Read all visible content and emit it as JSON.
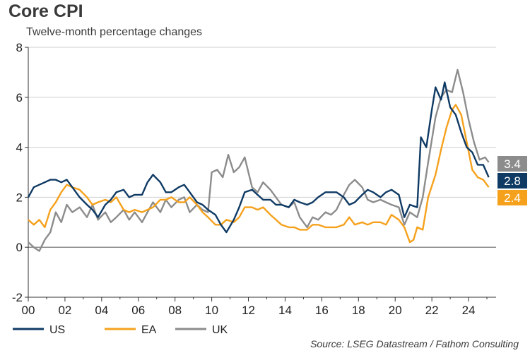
{
  "chart_data": {
    "type": "line",
    "title": "Core CPI",
    "subtitle": "Twelve-month percentage changes",
    "source": "Source: LSEG Datastream / Fathom Consulting",
    "xlim": [
      2000,
      2025.5
    ],
    "ylim": [
      -2,
      8
    ],
    "y_ticks": [
      -2,
      0,
      2,
      4,
      6,
      8
    ],
    "x_ticks": [
      {
        "value": 2000,
        "label": "00"
      },
      {
        "value": 2002,
        "label": "02"
      },
      {
        "value": 2004,
        "label": "04"
      },
      {
        "value": 2006,
        "label": "06"
      },
      {
        "value": 2008,
        "label": "08"
      },
      {
        "value": 2010,
        "label": "10"
      },
      {
        "value": 2012,
        "label": "12"
      },
      {
        "value": 2014,
        "label": "14"
      },
      {
        "value": 2016,
        "label": "16"
      },
      {
        "value": 2018,
        "label": "18"
      },
      {
        "value": 2020,
        "label": "20"
      },
      {
        "value": 2022,
        "label": "22"
      },
      {
        "value": 2024,
        "label": "24"
      }
    ],
    "series": [
      {
        "name": "UK",
        "color": "#8c8c8c",
        "latest": "3.4",
        "points": [
          [
            2000,
            0.2
          ],
          [
            2000.3,
            0.0
          ],
          [
            2000.6,
            -0.15
          ],
          [
            2000.9,
            0.3
          ],
          [
            2001.2,
            0.6
          ],
          [
            2001.5,
            1.4
          ],
          [
            2001.8,
            1.0
          ],
          [
            2002.1,
            1.7
          ],
          [
            2002.4,
            1.4
          ],
          [
            2002.8,
            1.6
          ],
          [
            2003.2,
            1.2
          ],
          [
            2003.5,
            1.7
          ],
          [
            2003.8,
            1.1
          ],
          [
            2004.2,
            1.4
          ],
          [
            2004.5,
            1.0
          ],
          [
            2004.8,
            1.2
          ],
          [
            2005.2,
            1.5
          ],
          [
            2005.5,
            1.1
          ],
          [
            2005.8,
            1.4
          ],
          [
            2006.2,
            1.0
          ],
          [
            2006.5,
            1.4
          ],
          [
            2006.8,
            1.8
          ],
          [
            2007.2,
            1.4
          ],
          [
            2007.5,
            1.9
          ],
          [
            2007.8,
            1.6
          ],
          [
            2008.2,
            1.9
          ],
          [
            2008.5,
            2.0
          ],
          [
            2008.8,
            1.4
          ],
          [
            2009.2,
            1.7
          ],
          [
            2009.5,
            1.5
          ],
          [
            2009.8,
            1.4
          ],
          [
            2010.0,
            3.0
          ],
          [
            2010.3,
            3.1
          ],
          [
            2010.6,
            2.8
          ],
          [
            2010.9,
            3.7
          ],
          [
            2011.2,
            3.0
          ],
          [
            2011.5,
            3.2
          ],
          [
            2011.8,
            3.6
          ],
          [
            2012.2,
            2.4
          ],
          [
            2012.5,
            2.2
          ],
          [
            2012.8,
            2.6
          ],
          [
            2013.2,
            2.3
          ],
          [
            2013.5,
            2.0
          ],
          [
            2013.8,
            1.7
          ],
          [
            2014.2,
            1.6
          ],
          [
            2014.5,
            1.8
          ],
          [
            2014.8,
            1.2
          ],
          [
            2015.2,
            0.8
          ],
          [
            2015.5,
            1.2
          ],
          [
            2015.8,
            1.1
          ],
          [
            2016.2,
            1.4
          ],
          [
            2016.5,
            1.3
          ],
          [
            2016.8,
            1.5
          ],
          [
            2017.2,
            2.1
          ],
          [
            2017.5,
            2.5
          ],
          [
            2017.8,
            2.7
          ],
          [
            2018.2,
            2.4
          ],
          [
            2018.5,
            1.9
          ],
          [
            2018.8,
            1.8
          ],
          [
            2019.2,
            1.9
          ],
          [
            2019.5,
            1.8
          ],
          [
            2019.8,
            1.7
          ],
          [
            2020.2,
            1.6
          ],
          [
            2020.5,
            0.9
          ],
          [
            2020.8,
            1.4
          ],
          [
            2021.2,
            1.2
          ],
          [
            2021.5,
            2.0
          ],
          [
            2021.8,
            3.4
          ],
          [
            2022.2,
            5.2
          ],
          [
            2022.5,
            6.0
          ],
          [
            2022.8,
            6.3
          ],
          [
            2023.1,
            6.2
          ],
          [
            2023.4,
            7.1
          ],
          [
            2023.7,
            6.2
          ],
          [
            2024.0,
            5.1
          ],
          [
            2024.3,
            4.2
          ],
          [
            2024.6,
            3.5
          ],
          [
            2024.9,
            3.6
          ],
          [
            2025.1,
            3.4
          ]
        ]
      },
      {
        "name": "EA",
        "color": "#f5a11c",
        "latest": "2.4",
        "points": [
          [
            2000,
            1.1
          ],
          [
            2000.3,
            0.9
          ],
          [
            2000.6,
            1.1
          ],
          [
            2000.9,
            0.8
          ],
          [
            2001.2,
            1.5
          ],
          [
            2001.5,
            1.8
          ],
          [
            2001.8,
            2.2
          ],
          [
            2002.1,
            2.5
          ],
          [
            2002.4,
            2.4
          ],
          [
            2002.8,
            2.3
          ],
          [
            2003.2,
            2.0
          ],
          [
            2003.5,
            1.7
          ],
          [
            2003.8,
            1.8
          ],
          [
            2004.2,
            1.9
          ],
          [
            2004.5,
            1.8
          ],
          [
            2004.8,
            2.0
          ],
          [
            2005.2,
            1.5
          ],
          [
            2005.5,
            1.4
          ],
          [
            2005.8,
            1.5
          ],
          [
            2006.2,
            1.4
          ],
          [
            2006.5,
            1.5
          ],
          [
            2006.8,
            1.6
          ],
          [
            2007.2,
            1.9
          ],
          [
            2007.5,
            1.9
          ],
          [
            2007.8,
            2.0
          ],
          [
            2008.2,
            1.8
          ],
          [
            2008.5,
            1.8
          ],
          [
            2008.8,
            2.0
          ],
          [
            2009.2,
            1.7
          ],
          [
            2009.5,
            1.4
          ],
          [
            2009.8,
            1.2
          ],
          [
            2010.2,
            0.9
          ],
          [
            2010.5,
            0.9
          ],
          [
            2010.8,
            1.1
          ],
          [
            2011.2,
            1.0
          ],
          [
            2011.5,
            1.2
          ],
          [
            2011.8,
            1.6
          ],
          [
            2012.2,
            1.6
          ],
          [
            2012.5,
            1.5
          ],
          [
            2012.8,
            1.6
          ],
          [
            2013.2,
            1.3
          ],
          [
            2013.5,
            1.1
          ],
          [
            2013.8,
            0.9
          ],
          [
            2014.2,
            0.8
          ],
          [
            2014.5,
            0.8
          ],
          [
            2014.8,
            0.7
          ],
          [
            2015.2,
            0.7
          ],
          [
            2015.5,
            0.9
          ],
          [
            2015.8,
            0.9
          ],
          [
            2016.2,
            0.8
          ],
          [
            2016.5,
            0.8
          ],
          [
            2016.8,
            0.8
          ],
          [
            2017.2,
            0.9
          ],
          [
            2017.5,
            1.2
          ],
          [
            2017.8,
            0.9
          ],
          [
            2018.2,
            1.0
          ],
          [
            2018.5,
            0.9
          ],
          [
            2018.8,
            1.0
          ],
          [
            2019.2,
            1.0
          ],
          [
            2019.5,
            0.9
          ],
          [
            2019.8,
            1.3
          ],
          [
            2020.2,
            1.1
          ],
          [
            2020.5,
            0.8
          ],
          [
            2020.8,
            0.2
          ],
          [
            2021.0,
            0.3
          ],
          [
            2021.2,
            0.8
          ],
          [
            2021.5,
            0.7
          ],
          [
            2021.8,
            2.0
          ],
          [
            2022.2,
            2.9
          ],
          [
            2022.5,
            3.9
          ],
          [
            2022.8,
            4.8
          ],
          [
            2023.1,
            5.5
          ],
          [
            2023.3,
            5.7
          ],
          [
            2023.6,
            5.3
          ],
          [
            2023.9,
            4.2
          ],
          [
            2024.2,
            3.1
          ],
          [
            2024.5,
            2.8
          ],
          [
            2024.8,
            2.7
          ],
          [
            2025.1,
            2.4
          ]
        ]
      },
      {
        "name": "US",
        "color": "#0f3a64",
        "latest": "2.8",
        "points": [
          [
            2000,
            2.0
          ],
          [
            2000.3,
            2.4
          ],
          [
            2000.6,
            2.5
          ],
          [
            2000.9,
            2.6
          ],
          [
            2001.2,
            2.7
          ],
          [
            2001.5,
            2.7
          ],
          [
            2001.8,
            2.6
          ],
          [
            2002.1,
            2.7
          ],
          [
            2002.4,
            2.4
          ],
          [
            2002.8,
            2.0
          ],
          [
            2003.2,
            1.7
          ],
          [
            2003.5,
            1.5
          ],
          [
            2003.8,
            1.2
          ],
          [
            2004.2,
            1.7
          ],
          [
            2004.5,
            1.9
          ],
          [
            2004.8,
            2.2
          ],
          [
            2005.2,
            2.3
          ],
          [
            2005.5,
            2.0
          ],
          [
            2005.8,
            2.1
          ],
          [
            2006.2,
            2.1
          ],
          [
            2006.5,
            2.6
          ],
          [
            2006.8,
            2.9
          ],
          [
            2007.2,
            2.6
          ],
          [
            2007.5,
            2.2
          ],
          [
            2007.8,
            2.2
          ],
          [
            2008.2,
            2.4
          ],
          [
            2008.5,
            2.5
          ],
          [
            2008.8,
            2.2
          ],
          [
            2009.2,
            1.8
          ],
          [
            2009.5,
            1.7
          ],
          [
            2009.8,
            1.5
          ],
          [
            2010.2,
            1.3
          ],
          [
            2010.5,
            0.9
          ],
          [
            2010.8,
            0.6
          ],
          [
            2011.2,
            1.1
          ],
          [
            2011.5,
            1.6
          ],
          [
            2011.8,
            2.2
          ],
          [
            2012.2,
            2.3
          ],
          [
            2012.5,
            2.1
          ],
          [
            2012.8,
            1.9
          ],
          [
            2013.2,
            1.9
          ],
          [
            2013.5,
            1.7
          ],
          [
            2013.8,
            1.7
          ],
          [
            2014.2,
            1.6
          ],
          [
            2014.5,
            1.9
          ],
          [
            2014.8,
            1.8
          ],
          [
            2015.2,
            1.7
          ],
          [
            2015.5,
            1.8
          ],
          [
            2015.8,
            2.0
          ],
          [
            2016.2,
            2.2
          ],
          [
            2016.5,
            2.2
          ],
          [
            2016.8,
            2.2
          ],
          [
            2017.2,
            2.0
          ],
          [
            2017.5,
            1.7
          ],
          [
            2017.8,
            1.8
          ],
          [
            2018.2,
            2.1
          ],
          [
            2018.5,
            2.3
          ],
          [
            2018.8,
            2.2
          ],
          [
            2019.2,
            2.0
          ],
          [
            2019.5,
            2.2
          ],
          [
            2019.8,
            2.3
          ],
          [
            2020.2,
            2.1
          ],
          [
            2020.5,
            1.2
          ],
          [
            2020.8,
            1.7
          ],
          [
            2021.2,
            1.6
          ],
          [
            2021.4,
            4.4
          ],
          [
            2021.7,
            4.0
          ],
          [
            2022.0,
            5.5
          ],
          [
            2022.2,
            6.4
          ],
          [
            2022.5,
            5.9
          ],
          [
            2022.7,
            6.6
          ],
          [
            2023.0,
            5.6
          ],
          [
            2023.3,
            5.3
          ],
          [
            2023.6,
            4.6
          ],
          [
            2023.9,
            4.0
          ],
          [
            2024.2,
            3.8
          ],
          [
            2024.5,
            3.3
          ],
          [
            2024.8,
            3.3
          ],
          [
            2025.1,
            2.8
          ]
        ]
      }
    ],
    "legend": [
      "US",
      "EA",
      "UK"
    ]
  }
}
